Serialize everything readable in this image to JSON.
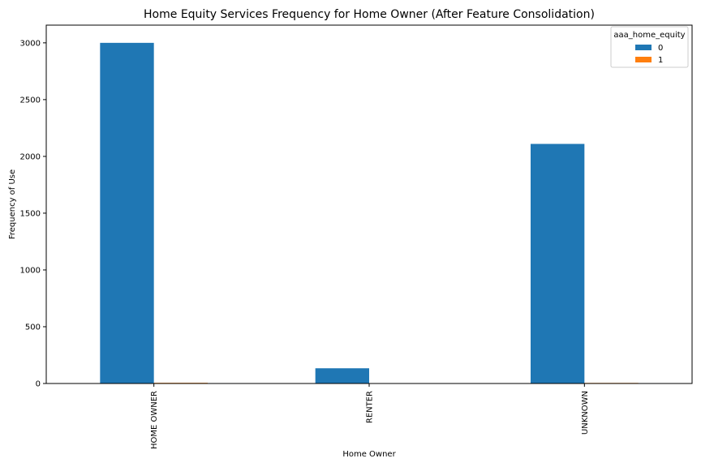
{
  "chart_data": {
    "type": "bar",
    "title": "Home Equity Services Frequency for Home Owner (After Feature Consolidation)",
    "xlabel": "Home Owner",
    "ylabel": "Frequency of Use",
    "categories": [
      "HOME OWNER",
      "RENTER",
      "UNKNOWN"
    ],
    "series": [
      {
        "name": "0",
        "values": [
          3000,
          134,
          2110
        ],
        "color": "#1f77b4"
      },
      {
        "name": "1",
        "values": [
          6,
          0,
          5
        ],
        "color": "#ff7f0e"
      }
    ],
    "yticks": [
      0,
      500,
      1000,
      1500,
      2000,
      2500,
      3000
    ],
    "ylim": [
      0,
      3000
    ],
    "legend": {
      "title": "aaa_home_equity",
      "placement": "top-right"
    },
    "grid": false
  }
}
